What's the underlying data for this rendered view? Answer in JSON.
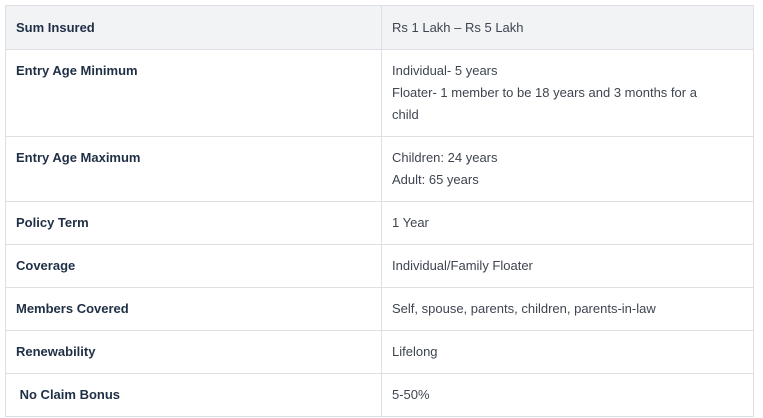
{
  "table": {
    "rows": [
      {
        "label": "Sum Insured",
        "value": [
          "Rs 1 Lakh – Rs 5 Lakh"
        ]
      },
      {
        "label": "Entry Age Minimum",
        "value": [
          "Individual- 5 years",
          "Floater- 1 member to be 18 years and 3 months for a",
          "child"
        ]
      },
      {
        "label": "Entry Age Maximum",
        "value": [
          "Children: 24 years",
          "Adult: 65 years"
        ]
      },
      {
        "label": "Policy Term",
        "value": [
          "1 Year"
        ]
      },
      {
        "label": "Coverage",
        "value": [
          "Individual/Family Floater"
        ]
      },
      {
        "label": "Members Covered",
        "value": [
          "Self, spouse, parents, children, parents-in-law"
        ]
      },
      {
        "label": "Renewability",
        "value": [
          "Lifelong"
        ]
      },
      {
        "label": " No Claim Bonus",
        "value": [
          "5-50%"
        ]
      }
    ]
  }
}
